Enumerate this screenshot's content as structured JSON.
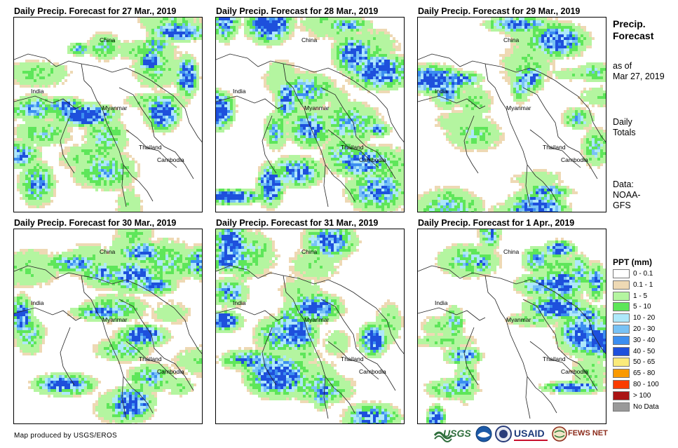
{
  "panels": [
    {
      "title": "Daily Precip. Forecast for 27 Mar., 2019",
      "seed": 27,
      "wet": 0.55,
      "heavy": 0.05
    },
    {
      "title": "Daily Precip. Forecast for 28 Mar., 2019",
      "seed": 28,
      "wet": 0.35,
      "heavy": 0.04
    },
    {
      "title": "Daily Precip. Forecast for 29 Mar., 2019",
      "seed": 29,
      "wet": 0.35,
      "heavy": 0.04
    },
    {
      "title": "Daily Precip. Forecast for 30 Mar., 2019",
      "seed": 30,
      "wet": 0.5,
      "heavy": 0.1
    },
    {
      "title": "Daily Precip. Forecast for 31 Mar., 2019",
      "seed": 31,
      "wet": 0.5,
      "heavy": 0.08
    },
    {
      "title": "Daily Precip. Forecast for 1 Apr., 2019",
      "seed": 1,
      "wet": 0.6,
      "heavy": 0.1
    }
  ],
  "places": {
    "china": "China",
    "india": "India",
    "myanmar": "Myanmar",
    "thailand": "Thailand",
    "cambodia": "Cambodia"
  },
  "side": {
    "title_line1": "Precip.",
    "title_line2": "Forecast",
    "asof_line1": "as of",
    "asof_line2": "Mar 27, 2019",
    "totals_line1": "Daily",
    "totals_line2": "Totals",
    "data_line1": "Data:",
    "data_line2": "NOAA-",
    "data_line3": "GFS"
  },
  "legend": {
    "title": "PPT (mm)",
    "items": [
      {
        "label": "0 - 0.1",
        "color": "#ffffff"
      },
      {
        "label": "0.1 - 1",
        "color": "#eed9b4"
      },
      {
        "label": "1 - 5",
        "color": "#b4f5a0"
      },
      {
        "label": "5 - 10",
        "color": "#5ee65a"
      },
      {
        "label": "10 - 20",
        "color": "#aee8fa"
      },
      {
        "label": "20 - 30",
        "color": "#78c2f5"
      },
      {
        "label": "30 - 40",
        "color": "#3c8ef0"
      },
      {
        "label": "40 - 50",
        "color": "#1e50dc"
      },
      {
        "label": "50 - 65",
        "color": "#faea7a"
      },
      {
        "label": "65 - 80",
        "color": "#fa9a00"
      },
      {
        "label": "80 - 100",
        "color": "#fa3c00"
      },
      {
        "label": "> 100",
        "color": "#aa1414"
      },
      {
        "label": "No Data",
        "color": "#999999"
      }
    ]
  },
  "footer": "Map produced by USGS/EROS",
  "logos": {
    "usgs": "USGS",
    "usaid": "USAID",
    "fewsnet": "FEWS NET"
  }
}
